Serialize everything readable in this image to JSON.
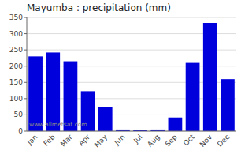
{
  "chart_data": {
    "type": "bar",
    "title": "Mayumba : precipitation (mm)",
    "categories": [
      "Jan",
      "Feb",
      "Mar",
      "Apr",
      "May",
      "Jun",
      "Jul",
      "Aug",
      "Sep",
      "Oct",
      "Nov",
      "Dec"
    ],
    "values": [
      230,
      242,
      215,
      123,
      75,
      5,
      3,
      5,
      42,
      210,
      333,
      160
    ],
    "color": "#0000DD",
    "ylim": [
      0,
      350
    ],
    "yticks": [
      0,
      50,
      100,
      150,
      200,
      250,
      300,
      350
    ],
    "grid": true,
    "annotations": [
      "www.allmetsat.com"
    ]
  }
}
